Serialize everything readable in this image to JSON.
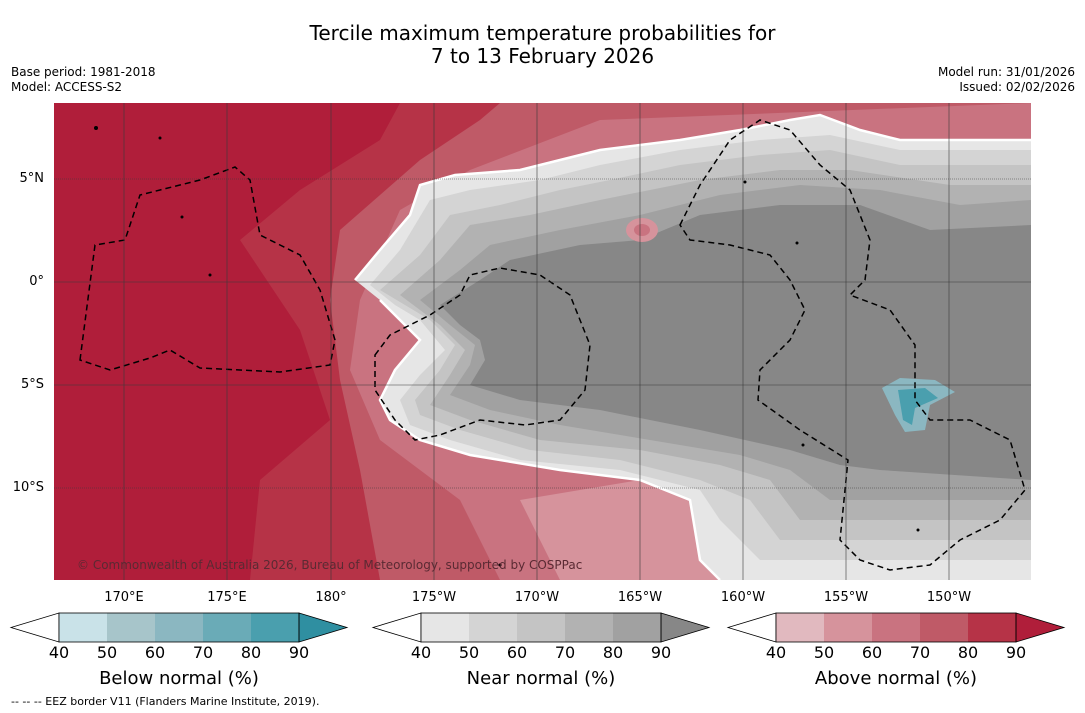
{
  "title_line1": "Tercile maximum temperature probabilities for",
  "title_line2": "7 to 13 February 2026",
  "meta_left": {
    "base_period": "Base period: 1981-2018",
    "model": "Model: ACCESS-S2"
  },
  "meta_right": {
    "model_run": "Model run: 31/01/2026",
    "issued": "Issued: 02/02/2026"
  },
  "lat_labels": [
    "5°N",
    "0°",
    "5°S",
    "10°S"
  ],
  "lon_labels": [
    "170°E",
    "175°E",
    "180°",
    "175°W",
    "170°W",
    "165°W",
    "160°W",
    "155°W",
    "150°W"
  ],
  "copyright": "© Commonwealth of Australia 2026, Bureau of Meteorology, supported by COSPPac",
  "colorbars": {
    "below": {
      "label": "Below normal (%)",
      "ticks": [
        "40",
        "50",
        "60",
        "70",
        "80",
        "90"
      ],
      "colors": [
        "#ffffff",
        "#c9e2e8",
        "#a7c5ca",
        "#8bb7c1",
        "#6aabb7",
        "#4a9fae",
        "#2f8fa1"
      ]
    },
    "near": {
      "label": "Near normal (%)",
      "ticks": [
        "40",
        "50",
        "60",
        "70",
        "80",
        "90"
      ],
      "colors": [
        "#ffffff",
        "#e6e6e6",
        "#d4d4d4",
        "#c4c4c4",
        "#b2b2b2",
        "#a1a1a1",
        "#878787"
      ]
    },
    "above": {
      "label": "Above normal (%)",
      "ticks": [
        "40",
        "50",
        "60",
        "70",
        "80",
        "90"
      ],
      "colors": [
        "#ffffff",
        "#e1b9bf",
        "#d6939c",
        "#c97380",
        "#bf5a67",
        "#b63347",
        "#b01e3a"
      ]
    }
  },
  "footnote": "--  --  -- EEZ border V11 (Flanders Marine Institute, 2019)."
}
